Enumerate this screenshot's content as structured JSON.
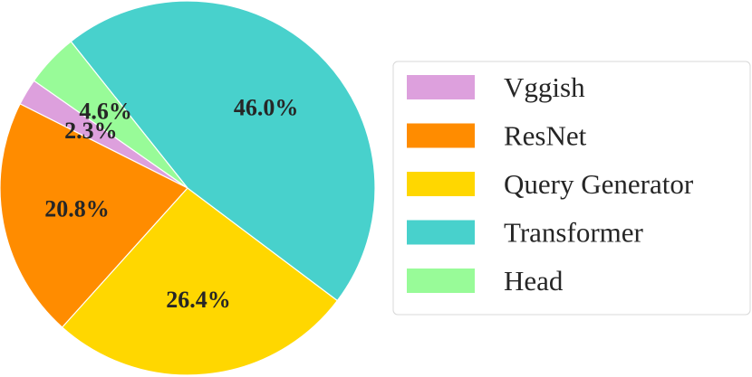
{
  "chart_data": {
    "type": "pie",
    "title": "",
    "start_angle_deg": 145,
    "direction": "counterclockwise",
    "legend_placement": "right",
    "slices": [
      {
        "label": "Vggish",
        "value": 2.3,
        "value_label": "2.3%",
        "color": "#dda0dd"
      },
      {
        "label": "ResNet",
        "value": 20.8,
        "value_label": "20.8%",
        "color": "#ff8c00"
      },
      {
        "label": "Query Generator",
        "value": 26.4,
        "value_label": "26.4%",
        "color": "#ffd700"
      },
      {
        "label": "Transformer",
        "value": 46.0,
        "value_label": "46.0%",
        "color": "#48d1cc"
      },
      {
        "label": "Head",
        "value": 4.6,
        "value_label": "4.6%",
        "color": "#98fb98"
      }
    ]
  }
}
